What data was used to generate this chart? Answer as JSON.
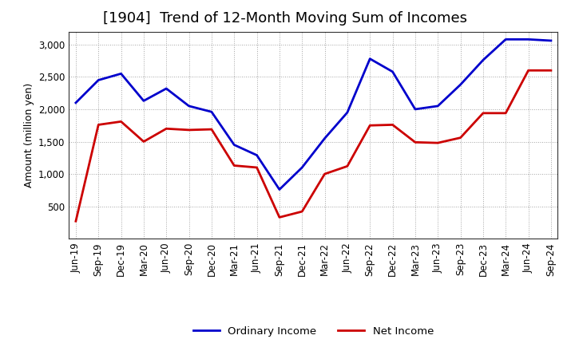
{
  "title": "[1904]  Trend of 12-Month Moving Sum of Incomes",
  "ylabel": "Amount (million yen)",
  "x_labels": [
    "Jun-19",
    "Sep-19",
    "Dec-19",
    "Mar-20",
    "Jun-20",
    "Sep-20",
    "Dec-20",
    "Mar-21",
    "Jun-21",
    "Sep-21",
    "Dec-21",
    "Mar-22",
    "Jun-22",
    "Sep-22",
    "Dec-22",
    "Mar-23",
    "Jun-23",
    "Sep-23",
    "Dec-23",
    "Mar-24",
    "Jun-24",
    "Sep-24"
  ],
  "ordinary_income": [
    2100,
    2450,
    2550,
    2130,
    2320,
    2050,
    1960,
    1450,
    1290,
    760,
    1100,
    1550,
    1950,
    2780,
    2580,
    2000,
    2050,
    2380,
    2760,
    3080,
    3080,
    3060
  ],
  "net_income": [
    270,
    1760,
    1810,
    1500,
    1700,
    1680,
    1690,
    1130,
    1100,
    330,
    420,
    1000,
    1120,
    1750,
    1760,
    1490,
    1480,
    1560,
    1940,
    1940,
    2600,
    2600
  ],
  "ordinary_color": "#0000cc",
  "net_color": "#cc0000",
  "ylim": [
    0,
    3200
  ],
  "yticks": [
    500,
    1000,
    1500,
    2000,
    2500,
    3000
  ],
  "background_color": "#ffffff",
  "grid_color": "#999999",
  "title_fontsize": 13,
  "axis_fontsize": 9,
  "tick_fontsize": 8.5,
  "legend_fontsize": 9.5
}
